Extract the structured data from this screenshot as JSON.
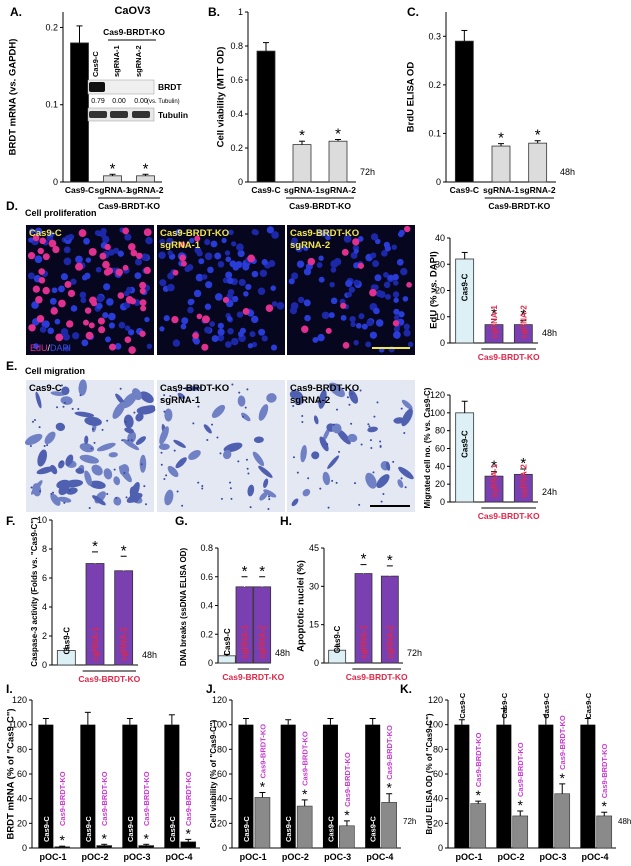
{
  "colors": {
    "black": "#000000",
    "grey": "#8a8a8a",
    "light_grey": "#dcdcdc",
    "light_blue": "#dcf0f6",
    "purple": "#7a3fb0",
    "magenta": "#c83ad0",
    "red": "#e0284a",
    "yellow": "#f2e64a"
  },
  "sig": "*",
  "section_titles": {
    "cell_proliferation": "Cell proliferation",
    "cell_migration": "Cell migration"
  },
  "microscopy": {
    "edu": {
      "labels": [
        [
          "Cas9-C"
        ],
        [
          "Cas9-BRDT-KO",
          "sgRNA-1"
        ],
        [
          "Cas9-BRDT-KO",
          "sgRNA-2"
        ]
      ],
      "stain_edu": "EdU",
      "stain_sep": "/",
      "stain_dapi": "DAPI"
    },
    "migration": {
      "labels": [
        [
          "Cas9-C"
        ],
        [
          "Cas9-BRDT-KO",
          "sgRNA-1"
        ],
        [
          "Cas9-BRDT-KO",
          "sgRNA-2"
        ]
      ]
    }
  },
  "western": {
    "header": "Cas9-BRDT-KO",
    "lanes": [
      "Cas9-C",
      "sgRNA-1",
      "sgRNA-2"
    ],
    "bands": [
      "BRDT",
      "Tubulin"
    ],
    "ratios": [
      "0.79",
      "0.00",
      "0.00"
    ],
    "ratio_note": "(vs. Tubulin)"
  },
  "chart_data": [
    {
      "id": "A",
      "panel_letter": "A.",
      "type": "bar",
      "title": "CaOV3",
      "ylabel": "BRDT mRNA (vs. GAPDH)",
      "categories": [
        "Cas9-C",
        "sgRNA-1",
        "sgRNA-2"
      ],
      "values": [
        0.18,
        0.008,
        0.008
      ],
      "errors": [
        0.022,
        0.002,
        0.002
      ],
      "ylim": [
        0,
        0.22
      ],
      "yticks": [
        0,
        0.1,
        0.2
      ],
      "ytick_labels": [
        "0",
        "0.1",
        "0.2"
      ],
      "group_label": "Cas9-BRDT-KO",
      "sig": [
        false,
        true,
        true
      ]
    },
    {
      "id": "B",
      "panel_letter": "B.",
      "type": "bar",
      "ylabel": "Cell viability (MTT OD)",
      "categories": [
        "Cas9-C",
        "sgRNA-1",
        "sgRNA-2"
      ],
      "values": [
        0.77,
        0.22,
        0.24
      ],
      "errors": [
        0.05,
        0.02,
        0.01
      ],
      "ylim": [
        0,
        1.0
      ],
      "yticks": [
        0,
        0.2,
        0.4,
        0.6,
        0.8,
        1.0
      ],
      "ytick_labels": [
        "0",
        "0.2",
        "0.4",
        "0.6",
        "0.8",
        "1"
      ],
      "group_label": "Cas9-BRDT-KO",
      "time": "72h",
      "sig": [
        false,
        true,
        true
      ]
    },
    {
      "id": "C",
      "panel_letter": "C.",
      "type": "bar",
      "ylabel": "BrdU ELISA OD",
      "categories": [
        "Cas9-C",
        "sgRNA-1",
        "sgRNA-2"
      ],
      "values": [
        0.29,
        0.074,
        0.08
      ],
      "errors": [
        0.022,
        0.005,
        0.005
      ],
      "ylim": [
        0,
        0.35
      ],
      "yticks": [
        0,
        0.1,
        0.2,
        0.3
      ],
      "ytick_labels": [
        "0",
        "0.1",
        "0.2",
        "0.3"
      ],
      "group_label": "Cas9-BRDT-KO",
      "time": "48h",
      "sig": [
        false,
        true,
        true
      ]
    },
    {
      "id": "D",
      "panel_letter": "D.",
      "type": "bar",
      "ylabel": "EdU (% vs. DAPI)",
      "categories": [
        "Cas9-C",
        "sgRNA-1",
        "sgRNA-2"
      ],
      "values": [
        32,
        7,
        7
      ],
      "errors": [
        2.5,
        2,
        1.5
      ],
      "ylim": [
        0,
        40
      ],
      "yticks": [
        0,
        10,
        20,
        30,
        40
      ],
      "ytick_labels": [
        "0",
        "10",
        "20",
        "30",
        "40"
      ],
      "group_label": "Cas9-BRDT-KO",
      "time": "48h",
      "sig": [
        false,
        true,
        true
      ]
    },
    {
      "id": "E",
      "panel_letter": "E.",
      "type": "bar",
      "ylabel": "Migrated cell no. (% vs. Cas9-C)",
      "categories": [
        "Cas9-C",
        "sgRNA-1",
        "sgRNA-2"
      ],
      "values": [
        100,
        29,
        31
      ],
      "errors": [
        13,
        5,
        6
      ],
      "ylim": [
        0,
        120
      ],
      "yticks": [
        0,
        20,
        40,
        60,
        80,
        100,
        120
      ],
      "ytick_labels": [
        "0",
        "20",
        "40",
        "60",
        "80",
        "100",
        "120"
      ],
      "group_label": "Cas9-BRDT-KO",
      "time": "24h",
      "sig": [
        false,
        true,
        true
      ]
    },
    {
      "id": "F",
      "panel_letter": "F.",
      "type": "bar",
      "ylabel": "Caspase-3 activity (Folds vs. \"Cas9-C\")",
      "categories": [
        "Cas9-C",
        "sgRNA-1",
        "sgRNA-2"
      ],
      "values": [
        1,
        7,
        6.5
      ],
      "errors": [
        0.15,
        0.8,
        1.0
      ],
      "ylim": [
        0,
        10
      ],
      "yticks": [
        0,
        2,
        4,
        6,
        8,
        10
      ],
      "ytick_labels": [
        "0",
        "2",
        "4",
        "6",
        "8",
        "10"
      ],
      "group_label": "Cas9-BRDT-KO",
      "time": "48h",
      "sig": [
        false,
        true,
        true
      ]
    },
    {
      "id": "G",
      "panel_letter": "G.",
      "type": "bar",
      "ylabel": "DNA breaks (ssDNA ELISA OD)",
      "categories": [
        "Cas9-C",
        "sgRNA-1",
        "sgRNA-2"
      ],
      "values": [
        0.05,
        0.53,
        0.53
      ],
      "errors": [
        0.01,
        0.07,
        0.07
      ],
      "ylim": [
        0,
        0.8
      ],
      "yticks": [
        0,
        0.2,
        0.4,
        0.6,
        0.8
      ],
      "ytick_labels": [
        "0",
        "0.2",
        "0.4",
        "0.6",
        "0.8"
      ],
      "group_label": "Cas9-BRDT-KO",
      "time": "48h",
      "sig": [
        false,
        true,
        true
      ]
    },
    {
      "id": "H",
      "panel_letter": "H.",
      "type": "bar",
      "ylabel": "Apoptotic nuclei (%)",
      "categories": [
        "Cas9-C",
        "sgRNA-1",
        "sgRNA-2"
      ],
      "values": [
        5,
        35,
        34
      ],
      "errors": [
        1.5,
        3.5,
        4
      ],
      "ylim": [
        0,
        45
      ],
      "yticks": [
        0,
        15,
        30,
        45
      ],
      "ytick_labels": [
        "0",
        "15",
        "30",
        "45"
      ],
      "group_label": "Cas9-BRDT-KO",
      "time": "72h",
      "sig": [
        false,
        true,
        true
      ]
    },
    {
      "id": "I",
      "panel_letter": "I.",
      "type": "bar",
      "ylabel": "BRDT mRNA (% of \"Cas9-C\")",
      "categories": [
        "pOC-1",
        "pOC-2",
        "pOC-3",
        "pOC-4"
      ],
      "bar_labels": [
        "Cas9-C",
        "Cas9-BRDT-KO"
      ],
      "series": [
        {
          "values": [
            100,
            100,
            100,
            100
          ],
          "errors": [
            5,
            10,
            5,
            8
          ]
        },
        {
          "values": [
            1,
            2,
            2,
            5
          ],
          "errors": [
            0.5,
            1,
            1,
            2
          ]
        }
      ],
      "ylim": [
        0,
        120
      ],
      "yticks": [
        0,
        20,
        40,
        60,
        80,
        100,
        120
      ],
      "ytick_labels": [
        "0",
        "20",
        "40",
        "60",
        "80",
        "100",
        "120"
      ],
      "sig": [
        true,
        true,
        true,
        true
      ]
    },
    {
      "id": "J",
      "panel_letter": "J.",
      "type": "bar",
      "ylabel": "Cell viability (% of \"Cas9-C\")",
      "categories": [
        "pOC-1",
        "pOC-2",
        "pOC-3",
        "pOC-4"
      ],
      "bar_labels": [
        "Cas9-C",
        "Cas9-BRDT-KO"
      ],
      "series": [
        {
          "values": [
            100,
            100,
            100,
            100
          ],
          "errors": [
            5,
            4,
            5,
            5
          ]
        },
        {
          "values": [
            41,
            34,
            18,
            37
          ],
          "errors": [
            4,
            5,
            4,
            7
          ]
        }
      ],
      "ylim": [
        0,
        120
      ],
      "yticks": [
        0,
        20,
        40,
        60,
        80,
        100,
        120
      ],
      "ytick_labels": [
        "0",
        "20",
        "40",
        "60",
        "80",
        "100",
        "120"
      ],
      "time": "72h",
      "sig": [
        true,
        true,
        true,
        true
      ]
    },
    {
      "id": "K",
      "panel_letter": "K.",
      "type": "bar",
      "ylabel": "BrdU ELISA OD (% of \"Cas9-C\")",
      "categories": [
        "pOC-1",
        "pOC-2",
        "pOC-3",
        "pOC-4"
      ],
      "bar_labels": [
        "Cas9-C",
        "Cas9-BRDT-KO"
      ],
      "series": [
        {
          "values": [
            100,
            100,
            100,
            100
          ],
          "errors": [
            4,
            13,
            8,
            5
          ]
        },
        {
          "values": [
            36,
            26,
            44,
            26
          ],
          "errors": [
            2,
            4,
            8,
            3
          ]
        }
      ],
      "ylim": [
        0,
        120
      ],
      "yticks": [
        0,
        20,
        40,
        60,
        80,
        100,
        120
      ],
      "ytick_labels": [
        "0",
        "20",
        "40",
        "60",
        "80",
        "100",
        "120"
      ],
      "time": "48h",
      "sig": [
        true,
        true,
        true,
        true
      ]
    }
  ]
}
